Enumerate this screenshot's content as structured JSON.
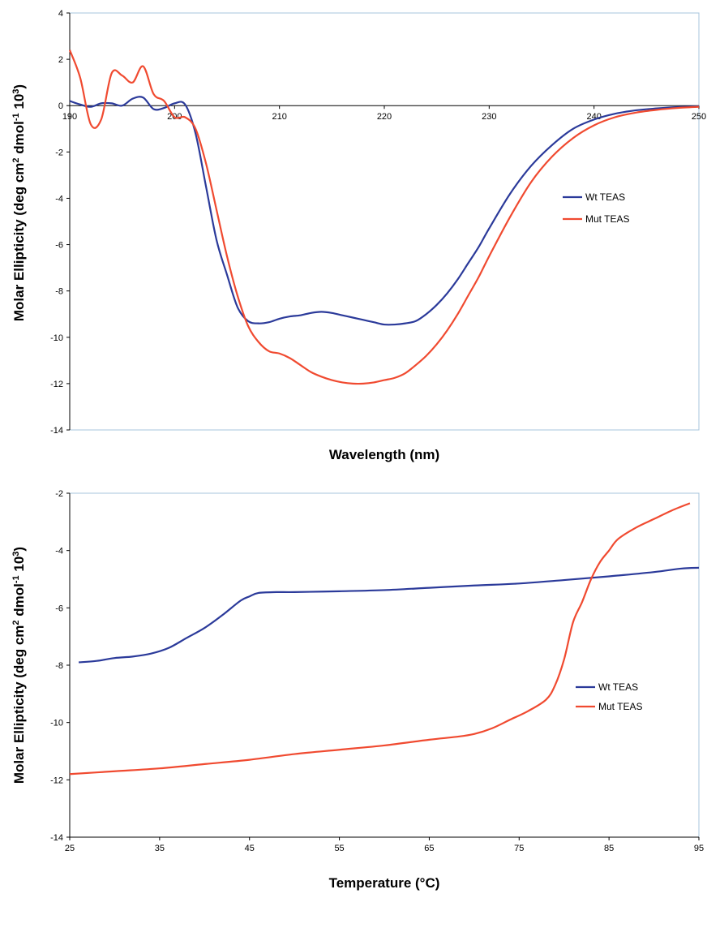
{
  "chart_data": [
    {
      "type": "line",
      "xlabel": "Wavelength (nm)",
      "ylabel": "Molar Ellipticity (deg cm",
      "ylabel_sup1": "2",
      "ylabel_mid": " dmol",
      "ylabel_sup2": "-1",
      "ylabel_end": " 10",
      "ylabel_sup3": "3",
      "ylabel_close": ")",
      "xlim": [
        190,
        250
      ],
      "ylim": [
        -14,
        4
      ],
      "x_ticks": [
        "190",
        "200",
        "210",
        "220",
        "230",
        "240",
        "250"
      ],
      "y_ticks": [
        "4",
        "2",
        "0",
        "-2",
        "-4",
        "-6",
        "-8",
        "-10",
        "-12",
        "-14"
      ],
      "x_axis_at_zero": true,
      "grid": false,
      "legend_position": "right",
      "series": [
        {
          "name": "Wt TEAS",
          "color": "#2b3a9a",
          "x": [
            190,
            191,
            192,
            193,
            194,
            195,
            196,
            197,
            198,
            199,
            200,
            201,
            202,
            203,
            204,
            205,
            206,
            207,
            208,
            209,
            210,
            211,
            212,
            213,
            214,
            215,
            216,
            217,
            218,
            219,
            220,
            221,
            222,
            223,
            224,
            225,
            226,
            227,
            228,
            229,
            230,
            232,
            234,
            236,
            238,
            240,
            242,
            244,
            246,
            248,
            250
          ],
          "y": [
            0.2,
            0.05,
            -0.05,
            0.1,
            0.1,
            0.0,
            0.3,
            0.35,
            -0.15,
            -0.1,
            0.1,
            0.05,
            -1.2,
            -3.5,
            -5.8,
            -7.3,
            -8.7,
            -9.3,
            -9.4,
            -9.35,
            -9.2,
            -9.1,
            -9.05,
            -8.95,
            -8.9,
            -8.95,
            -9.05,
            -9.15,
            -9.25,
            -9.35,
            -9.45,
            -9.45,
            -9.4,
            -9.3,
            -9.0,
            -8.6,
            -8.1,
            -7.5,
            -6.8,
            -6.1,
            -5.3,
            -3.8,
            -2.6,
            -1.7,
            -1.0,
            -0.6,
            -0.35,
            -0.2,
            -0.12,
            -0.06,
            -0.03
          ]
        },
        {
          "name": "Mut TEAS",
          "color": "#f04a30",
          "x": [
            190,
            191,
            192,
            193,
            194,
            195,
            196,
            197,
            198,
            199,
            200,
            201,
            202,
            203,
            204,
            205,
            206,
            207,
            208,
            209,
            210,
            211,
            212,
            213,
            214,
            215,
            216,
            217,
            218,
            219,
            220,
            221,
            222,
            223,
            224,
            225,
            226,
            227,
            228,
            229,
            230,
            232,
            234,
            236,
            238,
            240,
            242,
            244,
            246,
            248,
            250
          ],
          "y": [
            2.4,
            1.2,
            -0.8,
            -0.6,
            1.4,
            1.3,
            1.0,
            1.7,
            0.5,
            0.2,
            -0.5,
            -0.5,
            -1.0,
            -2.5,
            -4.5,
            -6.5,
            -8.2,
            -9.5,
            -10.2,
            -10.6,
            -10.7,
            -10.9,
            -11.2,
            -11.5,
            -11.7,
            -11.85,
            -11.95,
            -12.0,
            -12.0,
            -11.95,
            -11.85,
            -11.75,
            -11.55,
            -11.2,
            -10.8,
            -10.3,
            -9.7,
            -9.0,
            -8.2,
            -7.4,
            -6.5,
            -4.8,
            -3.3,
            -2.2,
            -1.4,
            -0.85,
            -0.5,
            -0.3,
            -0.18,
            -0.1,
            -0.05
          ]
        }
      ]
    },
    {
      "type": "line",
      "xlabel": "Temperature (°C)",
      "ylabel": "Molar Ellipticity (deg cm",
      "ylabel_sup1": "2",
      "ylabel_mid": " dmol",
      "ylabel_sup2": "-1",
      "ylabel_end": " 10",
      "ylabel_sup3": "3",
      "ylabel_close": ")",
      "xlim": [
        25,
        95
      ],
      "ylim": [
        -14,
        -2
      ],
      "x_ticks": [
        "25",
        "35",
        "45",
        "55",
        "65",
        "75",
        "85",
        "95"
      ],
      "y_ticks": [
        "-2",
        "-4",
        "-6",
        "-8",
        "-10",
        "-12",
        "-14"
      ],
      "x_axis_at_zero": false,
      "grid": false,
      "legend_position": "right",
      "series": [
        {
          "name": "Wt TEAS",
          "color": "#2b3a9a",
          "x": [
            26,
            28,
            30,
            32,
            34,
            36,
            38,
            40,
            42,
            44,
            45,
            46,
            48,
            50,
            55,
            60,
            65,
            70,
            75,
            80,
            85,
            90,
            93,
            95
          ],
          "y": [
            -7.9,
            -7.85,
            -7.75,
            -7.7,
            -7.6,
            -7.4,
            -7.05,
            -6.7,
            -6.25,
            -5.75,
            -5.6,
            -5.48,
            -5.45,
            -5.45,
            -5.42,
            -5.38,
            -5.3,
            -5.22,
            -5.15,
            -5.03,
            -4.9,
            -4.75,
            -4.63,
            -4.6
          ]
        },
        {
          "name": "Mut TEAS",
          "color": "#f04a30",
          "x": [
            25,
            30,
            35,
            40,
            45,
            50,
            55,
            60,
            65,
            68,
            70,
            72,
            74,
            76,
            78,
            79,
            80,
            81,
            82,
            83,
            84,
            85,
            86,
            88,
            90,
            92,
            94
          ],
          "y": [
            -11.8,
            -11.7,
            -11.6,
            -11.45,
            -11.3,
            -11.1,
            -10.95,
            -10.8,
            -10.6,
            -10.5,
            -10.4,
            -10.2,
            -9.9,
            -9.6,
            -9.2,
            -8.7,
            -7.8,
            -6.5,
            -5.8,
            -5.0,
            -4.4,
            -4.0,
            -3.6,
            -3.2,
            -2.9,
            -2.6,
            -2.35
          ]
        }
      ]
    }
  ]
}
